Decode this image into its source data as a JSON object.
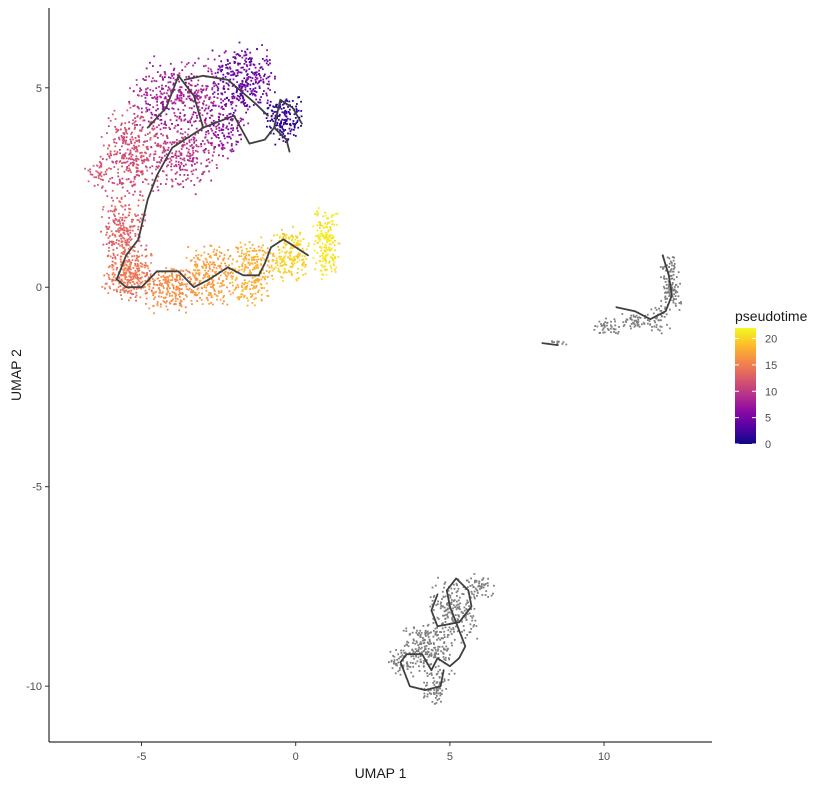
{
  "chart_data": {
    "type": "scatter",
    "title": "",
    "xlabel": "UMAP 1",
    "ylabel": "UMAP 2",
    "xlim": [
      -8.0,
      13.5
    ],
    "ylim": [
      -11.4,
      7.0
    ],
    "x_ticks": [
      -5,
      0,
      5,
      10
    ],
    "y_ticks": [
      -10,
      -5,
      0,
      5
    ],
    "x_tick_labels": [
      "-5",
      "0",
      "5",
      "10"
    ],
    "y_tick_labels": [
      "-10",
      "-5",
      "0",
      "5"
    ],
    "grid": false,
    "legend": {
      "title": "pseudotime",
      "placement": "right",
      "range": [
        0,
        22
      ],
      "ticks": [
        0,
        5,
        10,
        15,
        20
      ],
      "tick_labels": [
        "0",
        "5",
        "10",
        "15",
        "20"
      ],
      "colors": [
        "#0d0887",
        "#5302a3",
        "#8b0aa5",
        "#b83289",
        "#db5c68",
        "#f48849",
        "#febd2a",
        "#f0f921"
      ]
    },
    "unassigned_color": "#7f7f7f",
    "trajectory_color": "#404040",
    "clusters": [
      {
        "colored": true,
        "regions": [
          {
            "cx": -3.8,
            "cy": 4.8,
            "rx": 1.5,
            "ry": 0.9,
            "n": 380,
            "t": [
              6,
              10
            ]
          },
          {
            "cx": -1.7,
            "cy": 5.2,
            "rx": 1.0,
            "ry": 0.8,
            "n": 320,
            "t": [
              2,
              7
            ]
          },
          {
            "cx": -0.4,
            "cy": 4.2,
            "rx": 0.55,
            "ry": 0.6,
            "n": 170,
            "t": [
              0,
              3
            ]
          },
          {
            "cx": -5.3,
            "cy": 3.4,
            "rx": 0.95,
            "ry": 1.1,
            "n": 320,
            "t": [
              10,
              13
            ]
          },
          {
            "cx": -3.6,
            "cy": 3.3,
            "rx": 1.1,
            "ry": 0.9,
            "n": 260,
            "t": [
              8,
              11
            ]
          },
          {
            "cx": -2.3,
            "cy": 4.0,
            "rx": 0.7,
            "ry": 0.7,
            "n": 140,
            "t": [
              5,
              8
            ]
          },
          {
            "cx": -6.4,
            "cy": 2.9,
            "rx": 0.45,
            "ry": 0.35,
            "n": 40,
            "t": [
              11,
              13
            ]
          },
          {
            "cx": -5.6,
            "cy": 1.5,
            "rx": 0.7,
            "ry": 0.85,
            "n": 220,
            "t": [
              12,
              14
            ]
          },
          {
            "cx": -5.4,
            "cy": 0.3,
            "rx": 0.75,
            "ry": 0.6,
            "n": 280,
            "t": [
              13,
              16
            ]
          },
          {
            "cx": -4.0,
            "cy": 0.0,
            "rx": 0.9,
            "ry": 0.6,
            "n": 240,
            "t": [
              15,
              17
            ]
          },
          {
            "cx": -2.7,
            "cy": 0.3,
            "rx": 0.8,
            "ry": 0.7,
            "n": 220,
            "t": [
              16,
              18
            ]
          },
          {
            "cx": -1.4,
            "cy": 0.4,
            "rx": 0.7,
            "ry": 0.8,
            "n": 230,
            "t": [
              17,
              19
            ]
          },
          {
            "cx": -0.2,
            "cy": 0.8,
            "rx": 0.6,
            "ry": 0.65,
            "n": 190,
            "t": [
              19,
              21
            ]
          },
          {
            "cx": 1.0,
            "cy": 1.1,
            "rx": 0.4,
            "ry": 0.85,
            "n": 190,
            "t": [
              20,
              22
            ]
          }
        ],
        "trajectory": [
          [
            [
              -0.2,
              3.4
            ],
            [
              -0.3,
              3.7
            ],
            [
              -0.7,
              4.0
            ],
            [
              -1.0,
              3.7
            ],
            [
              -1.5,
              3.6
            ],
            [
              -2.0,
              4.3
            ],
            [
              -3.0,
              4.0
            ],
            [
              -4.0,
              3.5
            ],
            [
              -4.5,
              2.8
            ],
            [
              -4.8,
              2.2
            ],
            [
              -5.1,
              1.2
            ],
            [
              -5.5,
              0.8
            ],
            [
              -5.8,
              0.2
            ],
            [
              -5.5,
              0.0
            ],
            [
              -5.0,
              0.0
            ],
            [
              -4.5,
              0.4
            ],
            [
              -3.8,
              0.4
            ],
            [
              -3.3,
              0.0
            ],
            [
              -2.8,
              0.2
            ],
            [
              -2.2,
              0.5
            ],
            [
              -1.7,
              0.3
            ],
            [
              -1.2,
              0.3
            ],
            [
              -1.0,
              0.6
            ],
            [
              -0.8,
              1.0
            ],
            [
              -0.4,
              1.2
            ],
            [
              0.0,
              1.0
            ],
            [
              0.4,
              0.8
            ]
          ],
          [
            [
              -0.9,
              4.3
            ],
            [
              -1.3,
              4.6
            ],
            [
              -2.2,
              5.2
            ],
            [
              -3.0,
              5.3
            ],
            [
              -3.6,
              5.2
            ]
          ],
          [
            [
              -3.0,
              4.0
            ],
            [
              -3.3,
              4.8
            ],
            [
              -3.8,
              5.3
            ],
            [
              -4.2,
              4.5
            ],
            [
              -4.8,
              4.0
            ]
          ],
          [
            [
              -0.7,
              4.0
            ],
            [
              -0.5,
              4.7
            ],
            [
              -0.1,
              4.5
            ],
            [
              0.2,
              4.1
            ]
          ]
        ]
      },
      {
        "colored": false,
        "regions": [
          {
            "cx": 12.2,
            "cy": -0.1,
            "rx": 0.35,
            "ry": 0.45,
            "n": 80
          },
          {
            "cx": 12.1,
            "cy": 0.5,
            "rx": 0.25,
            "ry": 0.45,
            "n": 40
          },
          {
            "cx": 11.8,
            "cy": -0.8,
            "rx": 0.35,
            "ry": 0.35,
            "n": 40
          },
          {
            "cx": 11.0,
            "cy": -0.85,
            "rx": 0.55,
            "ry": 0.2,
            "n": 50
          },
          {
            "cx": 10.1,
            "cy": -1.0,
            "rx": 0.45,
            "ry": 0.2,
            "n": 40
          },
          {
            "cx": 8.5,
            "cy": -1.4,
            "rx": 0.3,
            "ry": 0.05,
            "n": 12
          }
        ],
        "trajectory": [
          [
            [
              10.4,
              -0.5
            ],
            [
              11.0,
              -0.6
            ],
            [
              11.5,
              -0.8
            ],
            [
              12.0,
              -0.6
            ],
            [
              12.2,
              -0.2
            ],
            [
              12.1,
              0.3
            ],
            [
              11.9,
              0.8
            ]
          ],
          [
            [
              8.0,
              -1.4
            ],
            [
              8.5,
              -1.45
            ]
          ]
        ]
      },
      {
        "colored": false,
        "regions": [
          {
            "cx": 5.1,
            "cy": -8.1,
            "rx": 0.75,
            "ry": 0.75,
            "n": 200
          },
          {
            "cx": 4.3,
            "cy": -9.1,
            "rx": 0.8,
            "ry": 0.65,
            "n": 220
          },
          {
            "cx": 4.5,
            "cy": -10.1,
            "rx": 0.45,
            "ry": 0.35,
            "n": 60
          },
          {
            "cx": 6.0,
            "cy": -7.5,
            "rx": 0.5,
            "ry": 0.3,
            "n": 50
          },
          {
            "cx": 3.4,
            "cy": -9.4,
            "rx": 0.35,
            "ry": 0.35,
            "n": 45
          }
        ],
        "trajectory": [
          [
            [
              3.4,
              -9.4
            ],
            [
              3.6,
              -9.2
            ],
            [
              4.1,
              -9.2
            ],
            [
              4.4,
              -9.6
            ],
            [
              4.6,
              -9.3
            ],
            [
              5.0,
              -9.5
            ],
            [
              5.3,
              -9.3
            ],
            [
              5.5,
              -9.0
            ],
            [
              5.3,
              -8.6
            ],
            [
              5.0,
              -8.0
            ],
            [
              4.9,
              -7.6
            ],
            [
              5.2,
              -7.3
            ],
            [
              5.6,
              -7.6
            ],
            [
              5.7,
              -8.0
            ],
            [
              5.3,
              -8.4
            ],
            [
              4.6,
              -8.5
            ],
            [
              4.4,
              -8.1
            ],
            [
              4.6,
              -7.7
            ]
          ],
          [
            [
              3.4,
              -9.4
            ],
            [
              3.7,
              -10.0
            ],
            [
              4.2,
              -10.1
            ],
            [
              4.7,
              -10.0
            ],
            [
              4.8,
              -9.6
            ]
          ]
        ]
      }
    ]
  }
}
